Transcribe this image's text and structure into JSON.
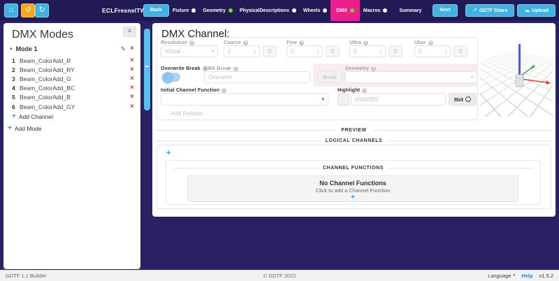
{
  "topbar": {
    "title": "ECLFresnelTW",
    "back_label": "Back",
    "next_label": "Next",
    "summary_label": "Summary",
    "tabs": [
      {
        "label": "Fixture",
        "dot": "white",
        "active": false
      },
      {
        "label": "Geometry",
        "dot": "green",
        "active": false
      },
      {
        "label": "PhysicalDescriptions",
        "dot": "white",
        "active": false
      },
      {
        "label": "Wheels",
        "dot": "white",
        "active": false
      },
      {
        "label": "DMX",
        "dot": "green",
        "active": true
      },
      {
        "label": "Macros",
        "dot": "white",
        "active": false
      }
    ],
    "share_label": "GDTF Share",
    "upload_label": "Upload",
    "home_icon": "⌂",
    "undo_icon": "↺",
    "redo_icon": "↻",
    "share_icon": "↗",
    "upload_icon": "☁"
  },
  "sidebar": {
    "title": "DMX Modes",
    "menu_icon": "≡",
    "mode": {
      "caret": "▾",
      "label": "Mode 1",
      "edit_icon": "✎",
      "delete_icon": "×"
    },
    "channels": [
      {
        "num": "1",
        "name": "Beam_ColorAdd_R"
      },
      {
        "num": "2",
        "name": "Beam_ColorAdd_RY"
      },
      {
        "num": "3",
        "name": "Beam_ColorAdd_G"
      },
      {
        "num": "4",
        "name": "Beam_ColorAdd_BC"
      },
      {
        "num": "5",
        "name": "Beam_ColorAdd_B"
      },
      {
        "num": "6",
        "name": "Beam_ColorAdd_GY"
      }
    ],
    "add_channel_label": "Add Channel",
    "add_mode_label": "Add Mode",
    "plus_icon": "+"
  },
  "main": {
    "title": "DMX Channel:",
    "fields": {
      "resolution": {
        "label": "Resolution",
        "value": "Virtual"
      },
      "coarse": {
        "label": "Coarse",
        "value": "0",
        "mirror": "0"
      },
      "fine": {
        "label": "Fine",
        "value": "0",
        "mirror": "0"
      },
      "ultra": {
        "label": "Ultra",
        "value": "0",
        "mirror": "0"
      },
      "uber": {
        "label": "Uber",
        "value": "0",
        "mirror": "0"
      },
      "overwrite_break": {
        "label": "Overwrite Break",
        "state": "on"
      },
      "dmx_break": {
        "label": "DMX Break",
        "placeholder": "Overwrite",
        "button": "Break"
      },
      "geometry": {
        "label": "Geometry",
        "value": ""
      },
      "initial_channel_function": {
        "label": "Initial Channel Function",
        "value": ""
      },
      "highlight": {
        "label": "Highlight",
        "placeholder": "0/0/0/255",
        "button": "8bit",
        "button_icon": "→"
      },
      "add_relation_label": "Add Relation"
    },
    "sections": {
      "preview": "PREVIEW",
      "logical_channels": "LOGICAL CHANNELS",
      "channel_functions": "CHANNEL FUNCTIONS",
      "empty_title": "No Channel Functions",
      "empty_subtitle": "Click to add a Channel Function",
      "plus_icon": "+"
    }
  },
  "footer": {
    "left": "GDTF 1.1 Builder",
    "center": "© GDTF 2022",
    "language_label": "Language",
    "help_label": "Help",
    "version": "v1.5.2"
  },
  "colors": {
    "accent_blue": "#41b1e1",
    "active_tab_pink": "#ec1e8d",
    "green_dot": "#6fdc16",
    "undo_orange": "#f8a51b",
    "delete_red": "#e53935",
    "link_blue": "#2196f3",
    "topbar_bg": "#221a55",
    "page_bg": "#2a2165"
  }
}
